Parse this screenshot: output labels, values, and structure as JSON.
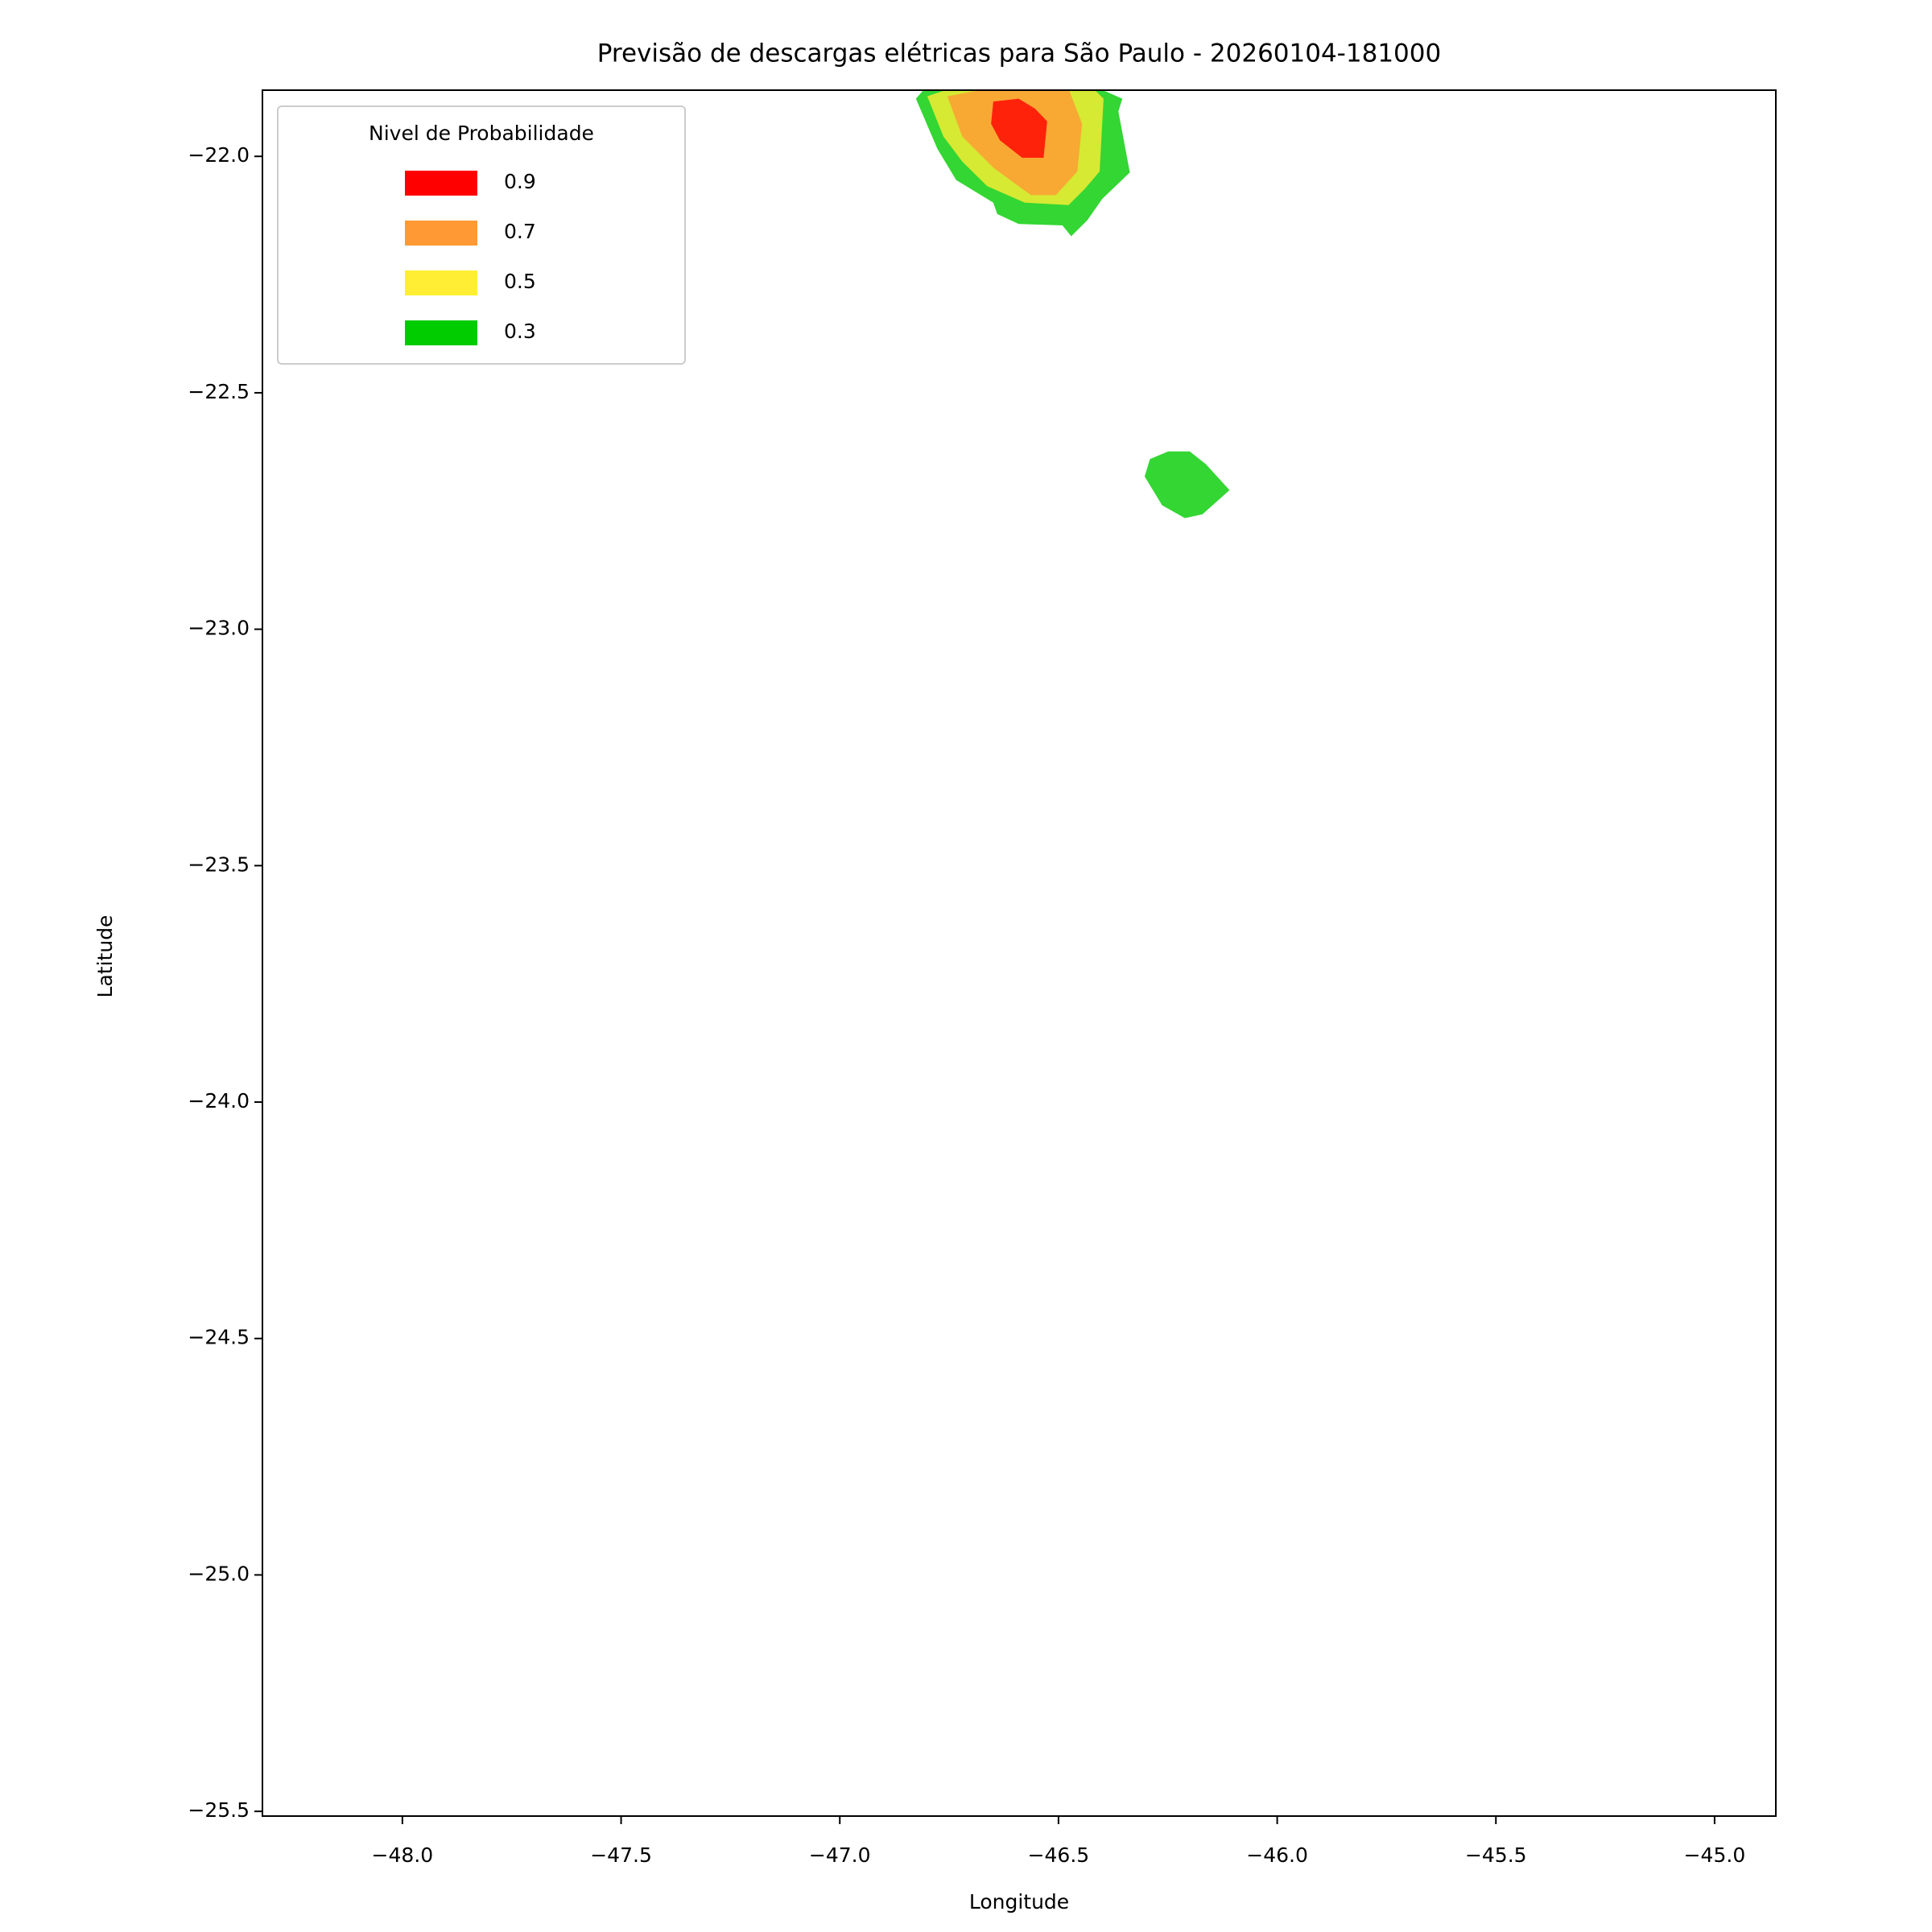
{
  "chart_data": {
    "type": "contour",
    "title": "Previsão de descargas elétricas para São Paulo - 20260104-181000",
    "x_label": "Longitude",
    "y_label": "Latitude",
    "xlim": [
      -48.32,
      -44.86
    ],
    "ylim": [
      -25.51,
      -21.86
    ],
    "xticks": [
      {
        "value": -48.0,
        "label": "−48.0"
      },
      {
        "value": -47.5,
        "label": "−47.5"
      },
      {
        "value": -47.0,
        "label": "−47.0"
      },
      {
        "value": -46.5,
        "label": "−46.5"
      },
      {
        "value": -46.0,
        "label": "−46.0"
      },
      {
        "value": -45.5,
        "label": "−45.5"
      },
      {
        "value": -45.0,
        "label": "−45.0"
      }
    ],
    "yticks": [
      {
        "value": -22.0,
        "label": "−22.0"
      },
      {
        "value": -22.5,
        "label": "−22.5"
      },
      {
        "value": -23.0,
        "label": "−23.0"
      },
      {
        "value": -23.5,
        "label": "−23.5"
      },
      {
        "value": -24.0,
        "label": "−24.0"
      },
      {
        "value": -24.5,
        "label": "−24.5"
      },
      {
        "value": -25.0,
        "label": "−25.0"
      },
      {
        "value": -25.5,
        "label": "−25.5"
      }
    ],
    "legend_title": "Nivel de Probabilidade",
    "legend": "upper left",
    "alpha": 0.8,
    "series": [
      {
        "name": "0.9",
        "color": "#ff0000",
        "polygons": [
          {
            "x": [
              -46.649,
              -46.654,
              -46.634,
              -46.583,
              -46.534,
              -46.526,
              -46.554,
              -46.591
            ],
            "y": [
              -21.884,
              -21.931,
              -21.966,
              -22.003,
              -22.003,
              -21.926,
              -21.899,
              -21.878
            ]
          }
        ]
      },
      {
        "name": "0.7",
        "color": "#ff9933",
        "polygons": [
          {
            "x": [
              -46.754,
              -46.72,
              -46.649,
              -46.563,
              -46.506,
              -46.457,
              -46.446,
              -46.477,
              -46.663
            ],
            "y": [
              -21.873,
              -21.958,
              -22.024,
              -22.082,
              -22.082,
              -22.032,
              -21.931,
              -21.857,
              -21.857
            ]
          }
        ]
      },
      {
        "name": "0.5",
        "color": "#ffee33",
        "polygons": [
          {
            "x": [
              -46.8,
              -46.763,
              -46.72,
              -46.663,
              -46.577,
              -46.477,
              -46.44,
              -46.406,
              -46.397,
              -46.42,
              -46.749
            ],
            "y": [
              -21.873,
              -21.958,
              -22.011,
              -22.063,
              -22.098,
              -22.103,
              -22.069,
              -22.032,
              -21.878,
              -21.857,
              -21.857
            ]
          }
        ]
      },
      {
        "name": "0.3",
        "color": "#00cc00",
        "polygons": [
          {
            "x": [
              -46.826,
              -46.777,
              -46.734,
              -46.649,
              -46.64,
              -46.591,
              -46.491,
              -46.471,
              -46.434,
              -46.4,
              -46.337,
              -46.363,
              -46.354,
              -46.406,
              -46.806
            ],
            "y": [
              -21.878,
              -21.984,
              -22.05,
              -22.098,
              -22.122,
              -22.143,
              -22.146,
              -22.169,
              -22.135,
              -22.09,
              -22.034,
              -21.905,
              -21.878,
              -21.857,
              -21.857
            ]
          },
          {
            "x": [
              -46.291,
              -46.303,
              -46.263,
              -46.211,
              -46.171,
              -46.109,
              -46.163,
              -46.2,
              -46.249
            ],
            "y": [
              -22.64,
              -22.677,
              -22.738,
              -22.765,
              -22.757,
              -22.706,
              -22.651,
              -22.624,
              -22.624
            ]
          }
        ]
      }
    ]
  }
}
